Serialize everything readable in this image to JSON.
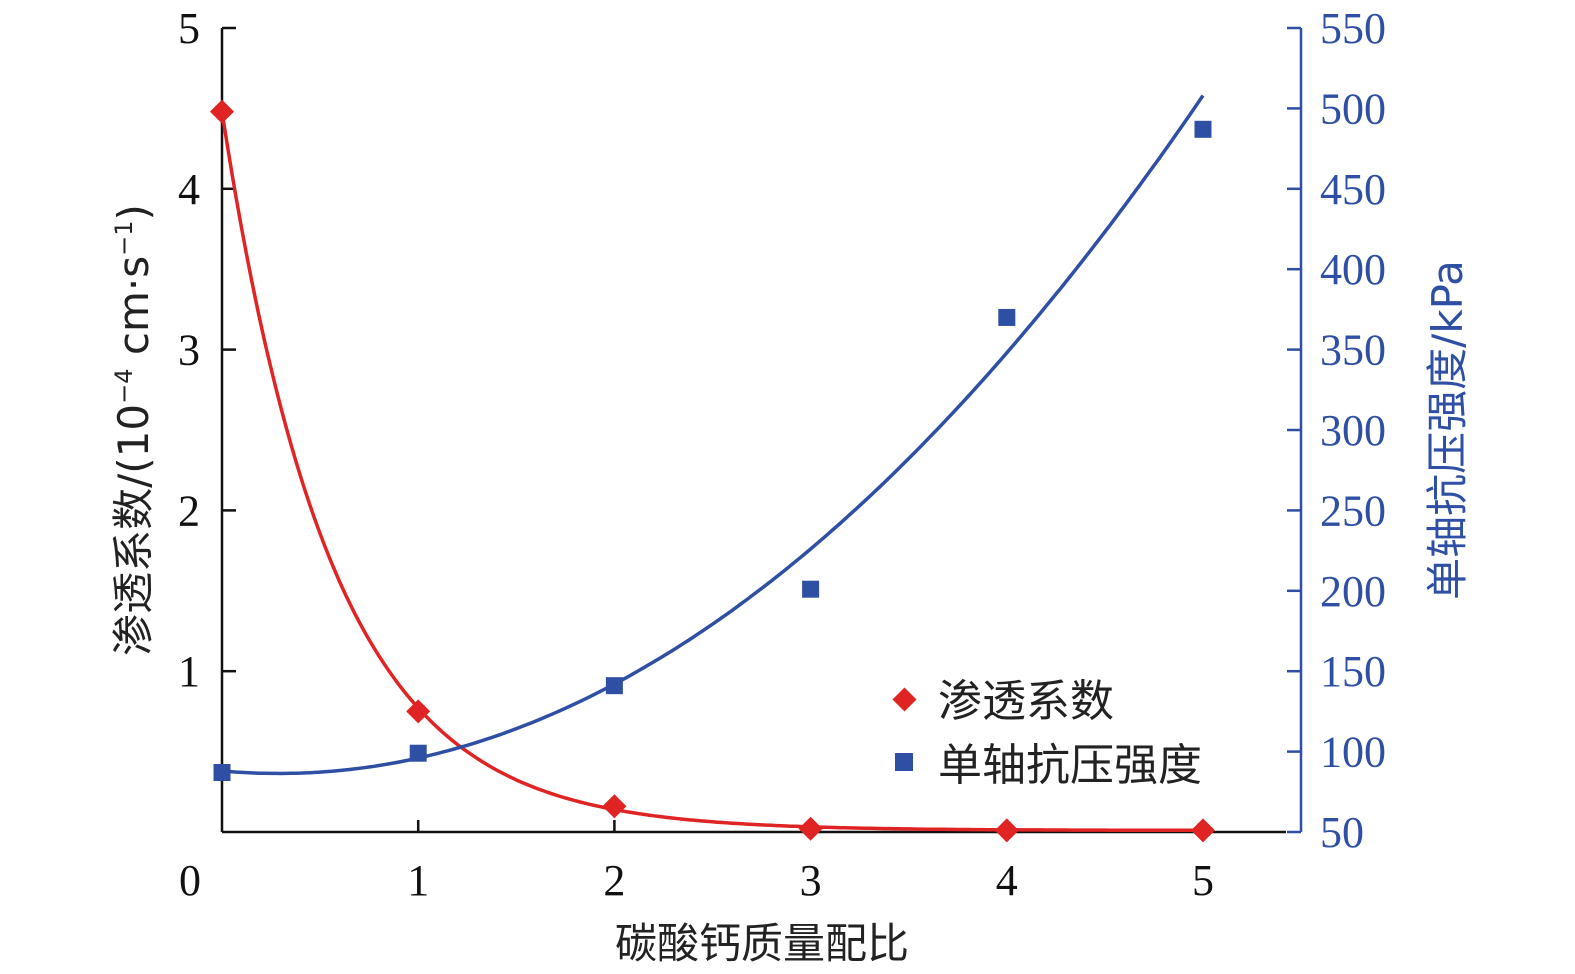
{
  "chart_data": {
    "type": "scatter",
    "x": [
      0,
      1,
      2,
      3,
      4,
      5
    ],
    "xlabel": "碳酸钙质量配比",
    "xlim": [
      0,
      5.3
    ],
    "x_ticks": [
      "0",
      "1",
      "2",
      "3",
      "4",
      "5"
    ],
    "ylabel_left": {
      "prefix": "渗透系数/(10",
      "exp1": "−4",
      "mid": " cm·s",
      "exp2": "−1",
      "suffix": ")"
    },
    "ylim_left": [
      0,
      5
    ],
    "y_ticks_left": [
      "1",
      "2",
      "3",
      "4",
      "5"
    ],
    "ylabel_right": "单轴抗压强度/kPa",
    "ylim_right": [
      50,
      550
    ],
    "y_ticks_right": [
      "50",
      "100",
      "150",
      "200",
      "250",
      "300",
      "350",
      "400",
      "450",
      "500",
      "550"
    ],
    "legend_position": "lower-right",
    "colors": {
      "permeability": "#e02424",
      "strength": "#2e4fa3",
      "axis_right": "#2e4fa3",
      "axis_left": "#111111"
    },
    "series": [
      {
        "name": "渗透系数",
        "axis": "left",
        "marker": "diamond",
        "values": [
          4.48,
          0.75,
          0.16,
          0.02,
          0.01,
          0.01
        ],
        "fit": "exponential"
      },
      {
        "name": "单轴抗压强度",
        "axis": "right",
        "marker": "square",
        "values": [
          87,
          99,
          141,
          201,
          370,
          487
        ],
        "fit": "polynomial"
      }
    ]
  }
}
